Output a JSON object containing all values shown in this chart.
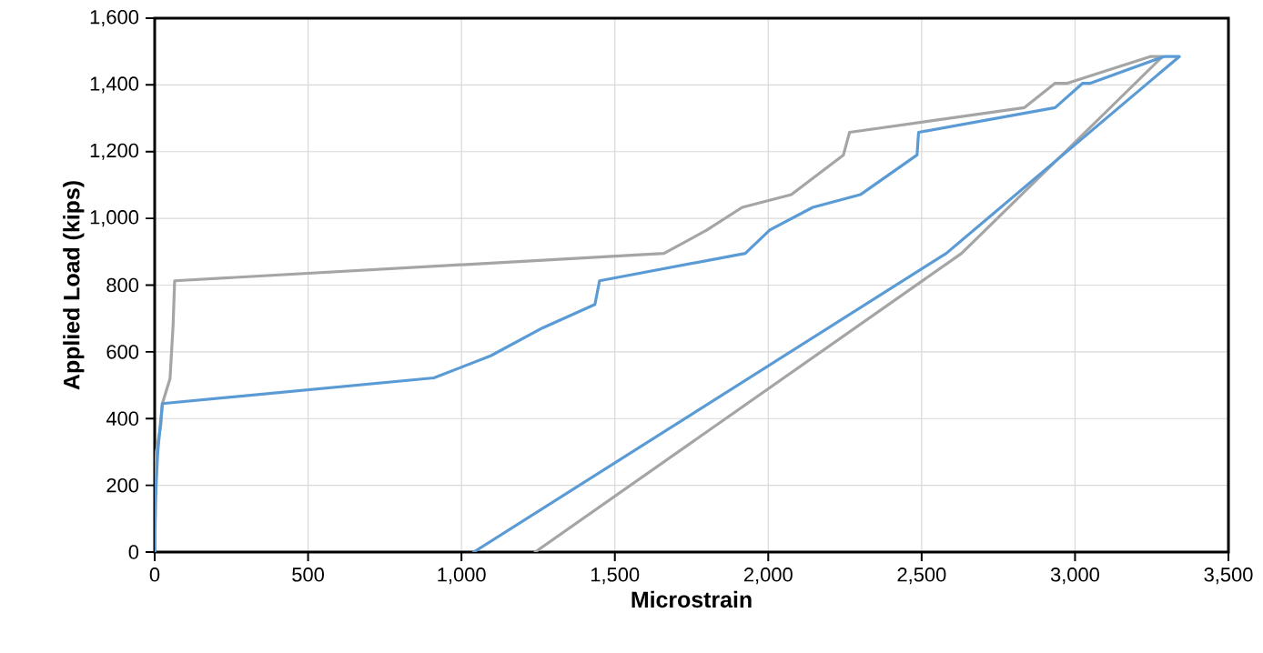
{
  "chart_data": {
    "type": "line",
    "xlabel": "Microstrain",
    "ylabel": "Applied Load (kips)",
    "xlim": [
      0,
      3500
    ],
    "ylim": [
      0,
      1600
    ],
    "xticks": [
      0,
      500,
      {
        "value": 1000,
        "label": "1,000"
      },
      {
        "value": 1500,
        "label": "1,500"
      },
      {
        "value": 2000,
        "label": "2,000"
      },
      {
        "value": 2500,
        "label": "2,500"
      },
      {
        "value": 3000,
        "label": "3,000"
      },
      {
        "value": 3500,
        "label": "3,500"
      }
    ],
    "yticks": [
      0,
      200,
      400,
      600,
      800,
      {
        "value": 1000,
        "label": "1,000"
      },
      {
        "value": 1200,
        "label": "1,200"
      },
      {
        "value": 1400,
        "label": "1,400"
      },
      {
        "value": 1600,
        "label": "1,600"
      }
    ],
    "grid": true,
    "legend": false,
    "marker": "none",
    "line_style": "solid",
    "series": [
      {
        "color": "#a5a5a5",
        "x": [
          0,
          3,
          5,
          20,
          25,
          50,
          60,
          65,
          1660,
          1800,
          1915,
          2075,
          2245,
          2265,
          2835,
          2935,
          2975,
          3245,
          3285,
          2630,
          1240
        ],
        "values": [
          0,
          150,
          300,
          380,
          445,
          520,
          680,
          813,
          895,
          965,
          1033,
          1071,
          1190,
          1258,
          1332,
          1405,
          1405,
          1485,
          1485,
          895,
          0
        ]
      },
      {
        "color": "#5b9bd5",
        "x": [
          0,
          2,
          10,
          25,
          910,
          1095,
          1265,
          1435,
          1450,
          1925,
          2005,
          2145,
          2300,
          2485,
          2490,
          2935,
          3025,
          3050,
          3290,
          3340,
          2580,
          1040
        ],
        "values": [
          0,
          150,
          300,
          445,
          522,
          588,
          672,
          742,
          813,
          895,
          965,
          1033,
          1071,
          1190,
          1258,
          1332,
          1405,
          1405,
          1485,
          1485,
          895,
          0
        ]
      }
    ]
  }
}
